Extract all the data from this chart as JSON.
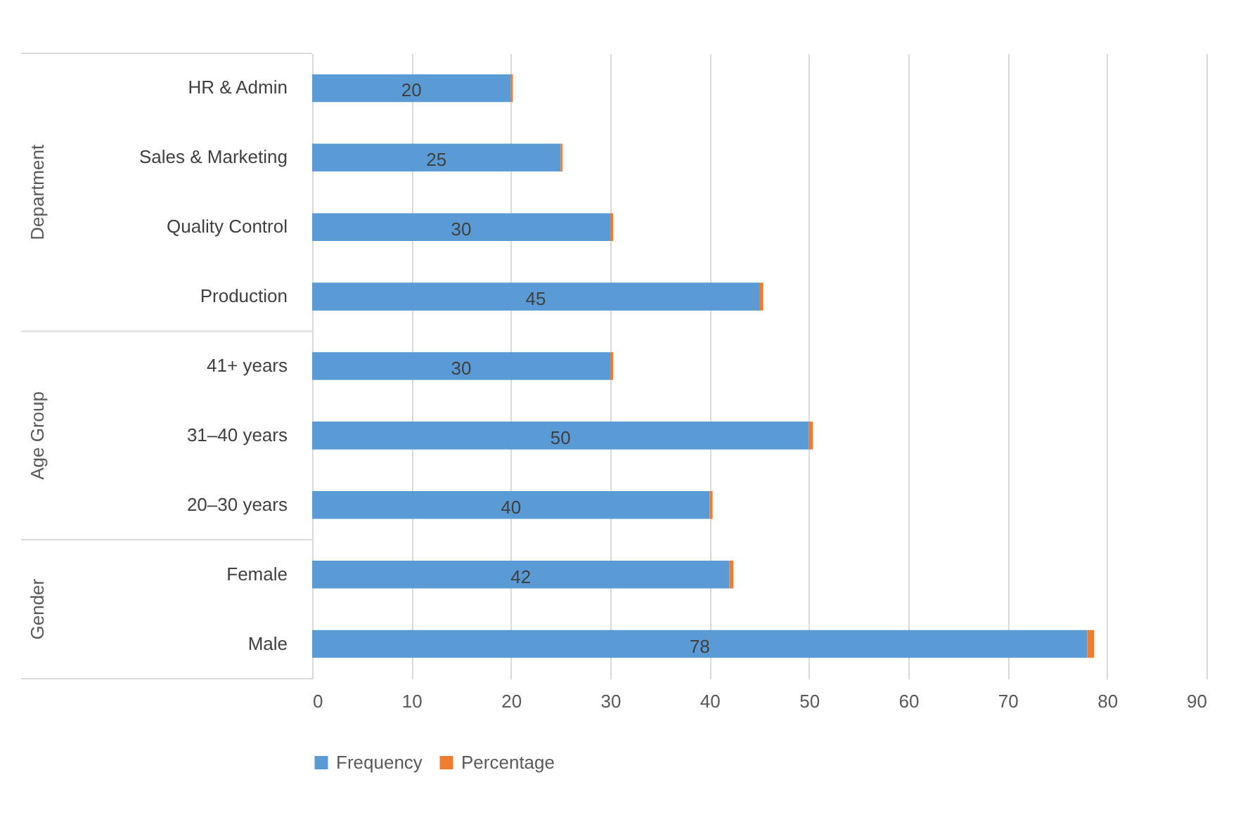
{
  "chart_data": {
    "type": "bar",
    "orientation": "horizontal",
    "stacked": true,
    "categories": [
      "HR & Admin",
      "Sales & Marketing",
      "Quality Control",
      "Production",
      "41+ years",
      "31–40 years",
      "20–30 years",
      "Female",
      "Male"
    ],
    "series": [
      {
        "name": "Frequency",
        "color": "#5b9bd5",
        "values": [
          20,
          25,
          30,
          45,
          30,
          50,
          40,
          42,
          78
        ],
        "value_labels": [
          "20",
          "25",
          "30",
          "45",
          "30",
          "50",
          "40",
          "42",
          "78"
        ]
      },
      {
        "name": "Percentage",
        "color": "#ed7d31",
        "values": [
          0.2,
          0.2,
          0.3,
          0.4,
          0.3,
          0.4,
          0.3,
          0.4,
          0.7
        ]
      }
    ],
    "annotations": [
      "Department",
      "Age Group",
      "Gender"
    ],
    "xlim": [
      0,
      90
    ],
    "xticks": [
      0,
      10,
      20,
      30,
      40,
      50,
      60,
      70,
      80,
      90
    ],
    "grid": "x",
    "legend": "bottom"
  }
}
